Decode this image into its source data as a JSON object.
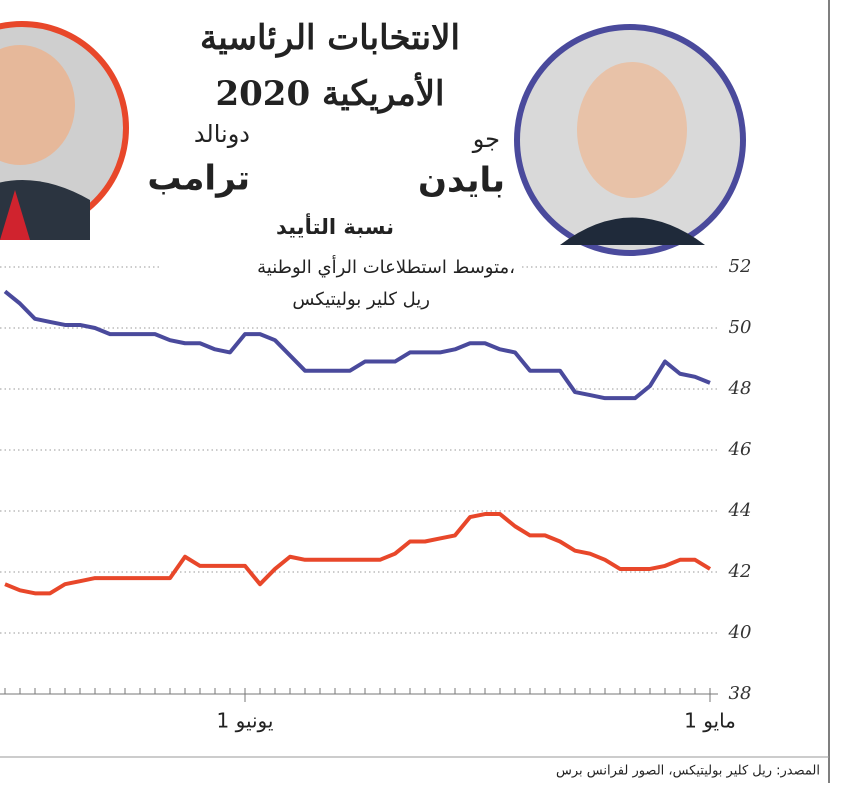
{
  "chart_data": {
    "type": "line",
    "title": [
      "الانتخابات الرئاسية",
      "الأمريكية 2020"
    ],
    "subtitle": "نسبة التأييد",
    "note": [
      "متوسط استطلاعات الرأي الوطنية،",
      "ريل كلير بوليتيكس"
    ],
    "source": "المصدر: ريل كلير بوليتيكس، الصور لفرانس برس",
    "categories": [
      "1 مايو",
      null,
      null,
      null,
      null,
      null,
      null,
      null,
      null,
      null,
      null,
      null,
      null,
      null,
      null,
      null,
      null,
      null,
      null,
      null,
      null,
      null,
      null,
      null,
      null,
      null,
      null,
      null,
      null,
      null,
      null,
      "1 يونيو",
      null,
      null,
      null,
      null,
      null,
      null,
      null,
      null,
      null,
      null,
      null,
      null,
      null,
      null,
      null,
      null
    ],
    "series": [
      {
        "name": "بايدن",
        "first_name": "جو",
        "color": "#4a4a9c",
        "values": [
          48.2,
          48.4,
          48.5,
          48.9,
          48.1,
          47.7,
          47.7,
          47.7,
          47.8,
          47.9,
          48.6,
          48.6,
          48.6,
          49.2,
          49.3,
          49.5,
          49.5,
          49.3,
          49.2,
          49.2,
          49.2,
          48.9,
          48.9,
          48.9,
          48.6,
          48.6,
          48.6,
          48.6,
          49.1,
          49.6,
          49.8,
          49.8,
          49.2,
          49.3,
          49.5,
          49.5,
          49.6,
          49.8,
          49.8,
          49.8,
          49.8,
          50.0,
          50.1,
          50.1,
          50.2,
          50.3,
          50.8,
          51.2
        ]
      },
      {
        "name": "ترامب",
        "first_name": "دونالد",
        "color": "#e8472a",
        "values": [
          42.1,
          42.4,
          42.4,
          42.2,
          42.1,
          42.1,
          42.1,
          42.4,
          42.6,
          42.7,
          43.0,
          43.2,
          43.2,
          43.5,
          43.9,
          43.9,
          43.8,
          43.2,
          43.1,
          43.0,
          43.0,
          42.6,
          42.4,
          42.4,
          42.4,
          42.4,
          42.4,
          42.4,
          42.5,
          42.1,
          41.6,
          42.2,
          42.2,
          42.2,
          42.2,
          42.5,
          41.8,
          41.8,
          41.8,
          41.8,
          41.8,
          41.8,
          41.7,
          41.6,
          41.3,
          41.3,
          41.4,
          41.6
        ]
      }
    ],
    "ylim": [
      38,
      52
    ],
    "yticks": [
      38,
      40,
      42,
      44,
      46,
      48,
      50,
      52
    ],
    "grid": true
  }
}
